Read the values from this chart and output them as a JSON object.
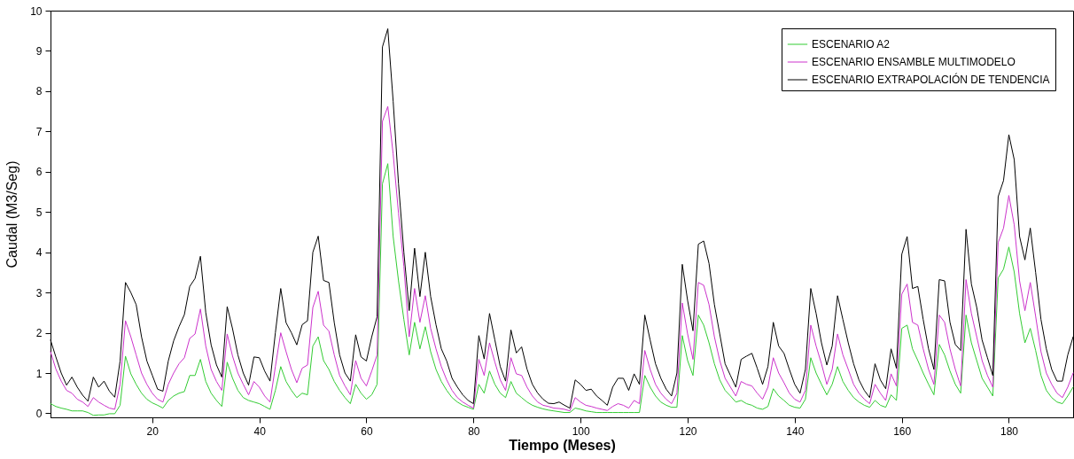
{
  "chart_data": {
    "type": "line",
    "xlabel": "Tiempo (Meses)",
    "ylabel": "Caudal (M3/Seg)",
    "x": [
      1,
      2,
      3,
      4,
      5,
      6,
      7,
      8,
      9,
      10,
      11,
      12,
      13,
      14,
      15,
      16,
      17,
      18,
      19,
      20,
      21,
      22,
      23,
      24,
      25,
      26,
      27,
      28,
      29,
      30,
      31,
      32,
      33,
      34,
      35,
      36,
      37,
      38,
      39,
      40,
      41,
      42,
      43,
      44,
      45,
      46,
      47,
      48,
      49,
      50,
      51,
      52,
      53,
      54,
      55,
      56,
      57,
      58,
      59,
      60,
      61,
      62,
      63,
      64,
      65,
      66,
      67,
      68,
      69,
      70,
      71,
      72,
      73,
      74,
      75,
      76,
      77,
      78,
      79,
      80,
      81,
      82,
      83,
      84,
      85,
      86,
      87,
      88,
      89,
      90,
      91,
      92,
      93,
      94,
      95,
      96,
      97,
      98,
      99,
      100,
      101,
      102,
      103,
      104,
      105,
      106,
      107,
      108,
      109,
      110,
      111,
      112,
      113,
      114,
      115,
      116,
      117,
      118,
      119,
      120,
      121,
      122,
      123,
      124,
      125,
      126,
      127,
      128,
      129,
      130,
      131,
      132,
      133,
      134,
      135,
      136,
      137,
      138,
      139,
      140,
      141,
      142,
      143,
      144,
      145,
      146,
      147,
      148,
      149,
      150,
      151,
      152,
      153,
      154,
      155,
      156,
      157,
      158,
      159,
      160,
      161,
      162,
      163,
      164,
      165,
      166,
      167,
      168,
      169,
      170,
      171,
      172,
      173,
      174,
      175,
      176,
      177,
      178,
      179,
      180,
      181,
      182,
      183,
      184,
      185,
      186,
      187,
      188,
      189,
      190,
      191,
      192
    ],
    "series": [
      {
        "name": "ESCENARIO A2",
        "color": "#33cc33",
        "values": [
          0.24,
          0.17,
          0.13,
          0.1,
          0.06,
          0.06,
          0.06,
          0.02,
          -0.05,
          -0.04,
          -0.04,
          -0.01,
          -0.01,
          0.2,
          1.42,
          0.98,
          0.72,
          0.5,
          0.35,
          0.26,
          0.2,
          0.13,
          0.32,
          0.43,
          0.5,
          0.54,
          0.94,
          0.94,
          1.34,
          0.79,
          0.5,
          0.32,
          0.17,
          1.27,
          0.87,
          0.57,
          0.39,
          0.32,
          0.28,
          0.24,
          0.17,
          0.1,
          0.57,
          1.16,
          0.79,
          0.57,
          0.39,
          0.5,
          0.46,
          1.67,
          1.9,
          1.31,
          1.09,
          0.79,
          0.57,
          0.39,
          0.24,
          0.72,
          0.5,
          0.35,
          0.46,
          0.72,
          5.7,
          6.2,
          4.39,
          3.29,
          2.33,
          1.45,
          2.26,
          1.6,
          2.15,
          1.53,
          1.09,
          0.79,
          0.57,
          0.39,
          0.28,
          0.2,
          0.15,
          0.1,
          0.72,
          0.5,
          1.05,
          0.72,
          0.5,
          0.39,
          0.79,
          0.5,
          0.39,
          0.28,
          0.2,
          0.15,
          0.11,
          0.08,
          0.06,
          0.04,
          0.02,
          0.02,
          0.13,
          0.1,
          0.06,
          0.04,
          0.02,
          0.02,
          0.02,
          0.02,
          0.02,
          0.02,
          0.02,
          0.02,
          0.02,
          0.94,
          0.65,
          0.43,
          0.28,
          0.2,
          0.15,
          0.15,
          1.93,
          1.31,
          0.94,
          2.44,
          2.19,
          1.75,
          1.23,
          0.83,
          0.57,
          0.43,
          0.28,
          0.32,
          0.24,
          0.2,
          0.13,
          0.1,
          0.17,
          0.61,
          0.43,
          0.32,
          0.2,
          0.15,
          0.13,
          0.35,
          1.38,
          1.0,
          0.72,
          0.46,
          0.72,
          1.16,
          0.79,
          0.57,
          0.39,
          0.28,
          0.2,
          0.15,
          0.32,
          0.2,
          0.15,
          0.46,
          0.32,
          2.11,
          2.19,
          1.6,
          1.31,
          1.0,
          0.72,
          0.46,
          1.71,
          1.45,
          1.05,
          0.72,
          0.5,
          2.44,
          1.75,
          1.31,
          0.87,
          0.65,
          0.43,
          3.36,
          3.58,
          4.13,
          3.51,
          2.48,
          1.75,
          2.11,
          1.56,
          0.94,
          0.57,
          0.39,
          0.28,
          0.24,
          0.43,
          0.65
        ]
      },
      {
        "name": "ESCENARIO ENSAMBLE MULTIMODELO",
        "color": "#cc33cc",
        "values": [
          1.53,
          1.1,
          0.8,
          0.57,
          0.5,
          0.35,
          0.28,
          0.17,
          0.39,
          0.28,
          0.2,
          0.13,
          0.1,
          0.72,
          2.3,
          1.9,
          1.45,
          1.0,
          0.72,
          0.5,
          0.35,
          0.28,
          0.72,
          1.0,
          1.23,
          1.38,
          1.86,
          1.97,
          2.59,
          1.67,
          1.09,
          0.79,
          0.57,
          1.97,
          1.42,
          1.0,
          0.72,
          0.46,
          0.79,
          0.65,
          0.43,
          0.28,
          1.16,
          2.0,
          1.53,
          1.09,
          0.76,
          1.12,
          1.2,
          2.63,
          3.03,
          2.19,
          2.04,
          1.45,
          0.94,
          0.68,
          0.46,
          1.31,
          0.87,
          0.68,
          1.05,
          1.45,
          7.25,
          7.62,
          6.44,
          4.97,
          3.65,
          1.9,
          3.1,
          2.26,
          2.92,
          2.11,
          1.6,
          1.16,
          0.83,
          0.57,
          0.39,
          0.28,
          0.2,
          0.13,
          1.34,
          0.94,
          1.75,
          1.27,
          0.83,
          0.57,
          1.38,
          0.98,
          0.94,
          0.65,
          0.43,
          0.28,
          0.2,
          0.17,
          0.13,
          0.12,
          0.1,
          0.06,
          0.39,
          0.28,
          0.2,
          0.17,
          0.13,
          0.1,
          0.07,
          0.17,
          0.24,
          0.2,
          0.13,
          0.32,
          0.24,
          1.56,
          1.09,
          0.72,
          0.5,
          0.35,
          0.24,
          0.5,
          2.74,
          1.97,
          1.34,
          3.25,
          3.18,
          2.7,
          1.9,
          1.31,
          0.87,
          0.65,
          0.43,
          0.79,
          0.72,
          0.68,
          0.5,
          0.35,
          0.65,
          1.38,
          1.0,
          0.76,
          0.5,
          0.35,
          0.28,
          0.57,
          2.19,
          1.67,
          1.23,
          0.72,
          1.09,
          1.97,
          1.45,
          1.09,
          0.72,
          0.5,
          0.35,
          0.24,
          0.72,
          0.5,
          0.32,
          0.98,
          0.68,
          2.96,
          3.21,
          2.26,
          2.19,
          1.6,
          1.09,
          0.72,
          2.44,
          2.26,
          1.6,
          1.09,
          0.68,
          3.32,
          2.48,
          1.9,
          1.31,
          0.94,
          0.65,
          4.24,
          4.6,
          5.41,
          4.68,
          3.29,
          2.55,
          3.25,
          2.41,
          1.53,
          1.0,
          0.72,
          0.5,
          0.39,
          0.65,
          1.0
        ]
      },
      {
        "name": "ESCENARIO EXTRAPOLACIÓN DE TENDENCIA",
        "color": "#000000",
        "values": [
          1.82,
          1.4,
          1.0,
          0.7,
          0.9,
          0.65,
          0.45,
          0.3,
          0.9,
          0.65,
          0.8,
          0.55,
          0.4,
          1.3,
          3.25,
          3.0,
          2.7,
          1.9,
          1.3,
          0.95,
          0.6,
          0.55,
          1.3,
          1.8,
          2.15,
          2.45,
          3.15,
          3.35,
          3.9,
          2.5,
          1.7,
          1.2,
          0.9,
          2.65,
          2.1,
          1.45,
          1.0,
          0.7,
          1.4,
          1.38,
          1.05,
          0.8,
          2.0,
          3.1,
          2.25,
          2.0,
          1.7,
          2.2,
          2.3,
          4.0,
          4.4,
          3.3,
          3.25,
          2.25,
          1.45,
          1.0,
          0.8,
          1.95,
          1.4,
          1.3,
          1.9,
          2.4,
          9.1,
          9.55,
          7.75,
          5.7,
          4.0,
          2.55,
          4.1,
          2.9,
          4.0,
          2.9,
          2.2,
          1.6,
          1.3,
          0.87,
          0.65,
          0.46,
          0.32,
          0.24,
          1.93,
          1.35,
          2.48,
          1.82,
          1.16,
          0.8,
          2.07,
          1.5,
          1.65,
          1.1,
          0.72,
          0.5,
          0.35,
          0.25,
          0.24,
          0.28,
          0.2,
          0.13,
          0.83,
          0.72,
          0.57,
          0.6,
          0.43,
          0.32,
          0.2,
          0.65,
          0.87,
          0.87,
          0.57,
          0.98,
          0.72,
          2.44,
          1.82,
          1.23,
          0.87,
          0.6,
          0.43,
          1.0,
          3.7,
          2.8,
          2.05,
          4.2,
          4.28,
          3.72,
          2.7,
          1.97,
          1.23,
          0.94,
          0.65,
          1.34,
          1.42,
          1.49,
          1.12,
          0.72,
          1.16,
          2.26,
          1.67,
          1.49,
          1.09,
          0.72,
          0.5,
          1.09,
          3.1,
          2.48,
          1.75,
          1.2,
          1.67,
          2.92,
          2.33,
          1.75,
          1.23,
          0.83,
          0.57,
          0.39,
          1.23,
          0.83,
          0.61,
          1.6,
          1.12,
          3.95,
          4.39,
          3.1,
          3.15,
          2.33,
          1.6,
          1.09,
          3.32,
          3.29,
          2.26,
          1.71,
          1.56,
          4.57,
          3.21,
          2.63,
          1.82,
          1.38,
          0.94,
          5.38,
          5.78,
          6.92,
          6.3,
          4.39,
          3.81,
          4.6,
          3.5,
          2.33,
          1.6,
          1.09,
          0.8,
          0.8,
          1.45,
          1.9
        ]
      }
    ],
    "xlim": [
      1,
      192
    ],
    "xticks": [
      20,
      40,
      60,
      80,
      100,
      120,
      140,
      160,
      180
    ],
    "ylim": [
      -0.1,
      10
    ],
    "yticks": [
      0,
      1,
      2,
      3,
      4,
      5,
      6,
      7,
      8,
      9,
      10
    ],
    "legend": "top right",
    "marker": "none",
    "line_style": "solid"
  }
}
